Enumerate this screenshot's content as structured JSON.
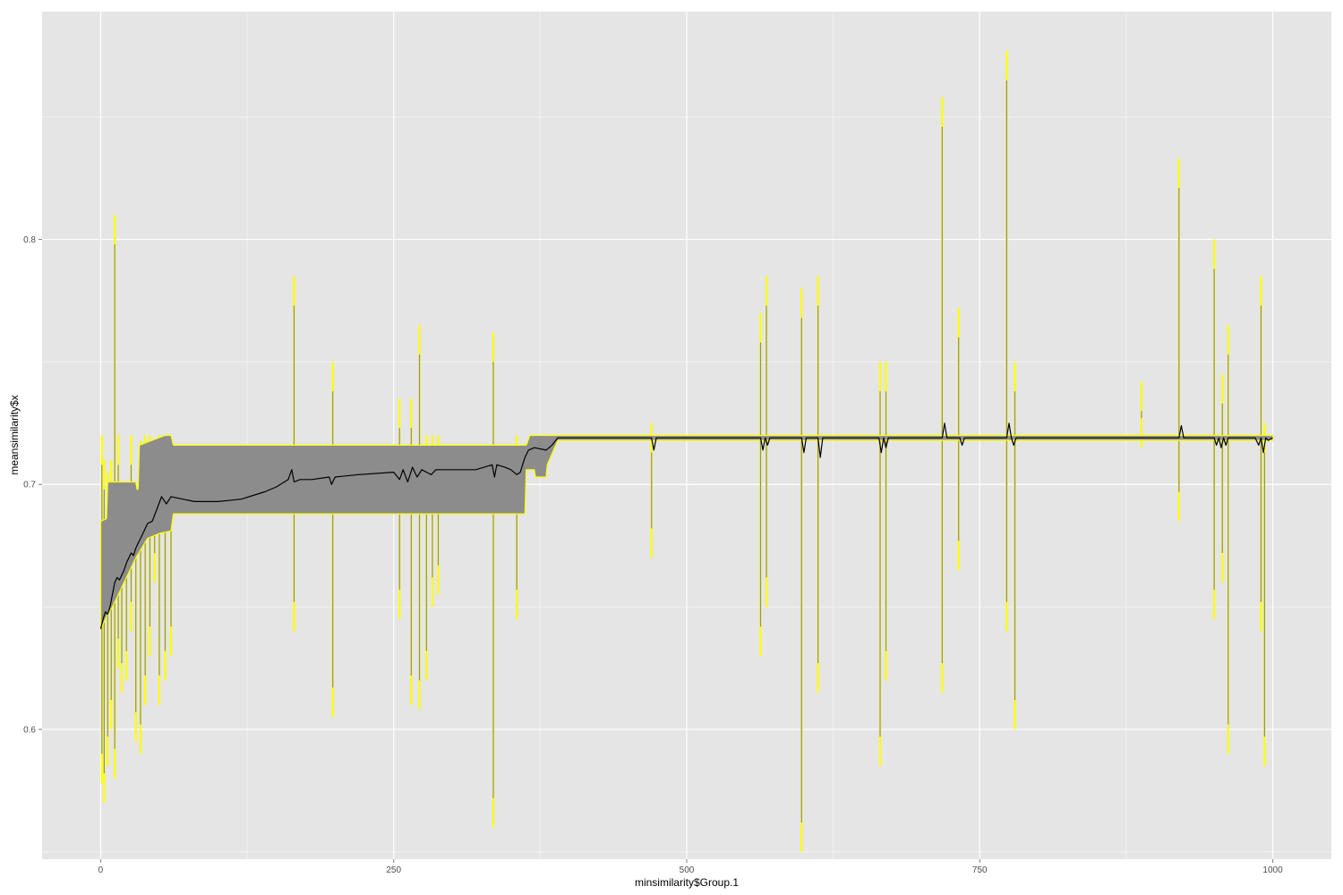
{
  "chart_data": {
    "type": "line",
    "title": "",
    "xlabel": "minsimilarity$Group.1",
    "ylabel": "meansimilarity$x",
    "xlim": [
      -50,
      1050
    ],
    "ylim": [
      0.547,
      0.893
    ],
    "grid": true,
    "x_ticks": [
      0,
      250,
      500,
      750,
      1000
    ],
    "x_tick_labels": [
      "0",
      "250",
      "500",
      "750",
      "1000"
    ],
    "y_ticks": [
      0.6,
      0.7,
      0.8
    ],
    "y_tick_labels": [
      "0.6",
      "0.7",
      "0.8"
    ],
    "colors": {
      "panel": "#e5e5e5",
      "grid": "#ffffff",
      "ribbon_fill": "#8c8c8c",
      "ribbon_border": "#ffff00",
      "line": "#000000"
    },
    "series": [
      {
        "role": "mean",
        "x": [
          0,
          2,
          4,
          6,
          8,
          10,
          12,
          14,
          16,
          18,
          20,
          22,
          24,
          26,
          28,
          30,
          32,
          34,
          36,
          38,
          40,
          44,
          48,
          52,
          56,
          60,
          70,
          80,
          90,
          100,
          120,
          140,
          150,
          160,
          163,
          165,
          170,
          180,
          195,
          197,
          200,
          220,
          250,
          255,
          258,
          262,
          266,
          270,
          274,
          278,
          282,
          286,
          290,
          300,
          320,
          334,
          336,
          338,
          345,
          350,
          355,
          358,
          362,
          365,
          370,
          380,
          385,
          390,
          400,
          450,
          470,
          472,
          474,
          500,
          563,
          565,
          567,
          569,
          571,
          598,
          600,
          602,
          612,
          614,
          616,
          664,
          666,
          668,
          670,
          672,
          718,
          720,
          722,
          733,
          735,
          737,
          773,
          775,
          777,
          779,
          781,
          783,
          800,
          890,
          920,
          922,
          924,
          950,
          952,
          954,
          956,
          958,
          960,
          962,
          980,
          985,
          988,
          990,
          992,
          994,
          996,
          1000
        ],
        "y": [
          0.641,
          0.645,
          0.648,
          0.647,
          0.65,
          0.655,
          0.66,
          0.662,
          0.661,
          0.663,
          0.665,
          0.668,
          0.67,
          0.672,
          0.671,
          0.674,
          0.676,
          0.678,
          0.68,
          0.682,
          0.684,
          0.685,
          0.69,
          0.695,
          0.692,
          0.695,
          0.694,
          0.693,
          0.693,
          0.693,
          0.694,
          0.697,
          0.699,
          0.702,
          0.706,
          0.701,
          0.702,
          0.702,
          0.703,
          0.7,
          0.703,
          0.704,
          0.705,
          0.702,
          0.706,
          0.701,
          0.707,
          0.703,
          0.706,
          0.705,
          0.704,
          0.706,
          0.706,
          0.706,
          0.706,
          0.708,
          0.703,
          0.708,
          0.707,
          0.706,
          0.704,
          0.705,
          0.711,
          0.714,
          0.715,
          0.714,
          0.716,
          0.719,
          0.719,
          0.719,
          0.719,
          0.714,
          0.719,
          0.719,
          0.719,
          0.714,
          0.719,
          0.716,
          0.719,
          0.719,
          0.713,
          0.719,
          0.719,
          0.711,
          0.719,
          0.719,
          0.713,
          0.719,
          0.715,
          0.719,
          0.719,
          0.725,
          0.719,
          0.719,
          0.716,
          0.719,
          0.719,
          0.725,
          0.719,
          0.716,
          0.719,
          0.719,
          0.719,
          0.719,
          0.719,
          0.724,
          0.719,
          0.719,
          0.716,
          0.719,
          0.715,
          0.719,
          0.716,
          0.719,
          0.719,
          0.719,
          0.716,
          0.719,
          0.713,
          0.719,
          0.718,
          0.719
        ]
      },
      {
        "role": "band-upper",
        "x": [
          0,
          5,
          6,
          30,
          31,
          32,
          33,
          55,
          60,
          62,
          363,
          364,
          366,
          368,
          370,
          372,
          374,
          376,
          378,
          380,
          382,
          384,
          386,
          388,
          390,
          1000
        ],
        "y": [
          0.685,
          0.686,
          0.701,
          0.701,
          0.698,
          0.698,
          0.716,
          0.72,
          0.72,
          0.716,
          0.716,
          0.717,
          0.72,
          0.72,
          0.72,
          0.72,
          0.72,
          0.72,
          0.72,
          0.72,
          0.72,
          0.72,
          0.72,
          0.72,
          0.72,
          0.72
        ]
      },
      {
        "role": "band-lower",
        "x": [
          0,
          5,
          10,
          20,
          30,
          40,
          50,
          60,
          62,
          362,
          363,
          370,
          371,
          380,
          381,
          390,
          1000
        ],
        "y": [
          0.641,
          0.646,
          0.65,
          0.66,
          0.67,
          0.678,
          0.68,
          0.681,
          0.688,
          0.688,
          0.706,
          0.706,
          0.703,
          0.703,
          0.708,
          0.718,
          0.718
        ]
      },
      {
        "role": "spikes",
        "x": [
          1,
          3,
          6,
          9,
          12,
          15,
          18,
          22,
          26,
          30,
          34,
          38,
          42,
          46,
          50,
          55,
          60,
          165,
          198,
          255,
          265,
          272,
          278,
          283,
          288,
          335,
          355,
          470,
          563,
          568,
          598,
          612,
          665,
          670,
          718,
          732,
          773,
          780,
          888,
          920,
          950,
          957,
          962,
          990,
          993
        ],
        "lo": [
          0.578,
          0.57,
          0.585,
          0.6,
          0.58,
          0.625,
          0.615,
          0.62,
          0.64,
          0.595,
          0.59,
          0.61,
          0.63,
          0.66,
          0.61,
          0.62,
          0.63,
          0.64,
          0.605,
          0.645,
          0.61,
          0.608,
          0.62,
          0.65,
          0.655,
          0.56,
          0.645,
          0.67,
          0.63,
          0.65,
          0.55,
          0.615,
          0.585,
          0.62,
          0.615,
          0.665,
          0.64,
          0.6,
          0.715,
          0.685,
          0.645,
          0.66,
          0.59,
          0.64,
          0.585
        ],
        "hi": [
          0.72,
          0.71,
          0.705,
          0.71,
          0.81,
          0.72,
          0.7,
          0.7,
          0.72,
          0.7,
          0.718,
          0.72,
          0.72,
          0.71,
          0.72,
          0.72,
          0.72,
          0.785,
          0.75,
          0.735,
          0.735,
          0.765,
          0.72,
          0.72,
          0.72,
          0.762,
          0.72,
          0.725,
          0.77,
          0.785,
          0.78,
          0.785,
          0.75,
          0.75,
          0.858,
          0.772,
          0.877,
          0.75,
          0.742,
          0.833,
          0.8,
          0.745,
          0.765,
          0.785,
          0.725
        ]
      }
    ]
  }
}
